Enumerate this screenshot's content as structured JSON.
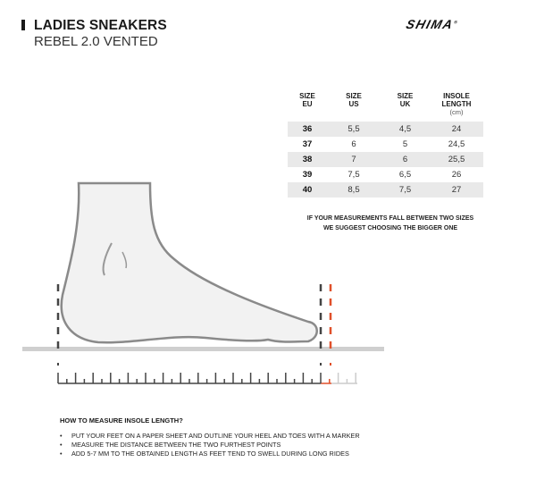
{
  "header": {
    "title": "LADIES SNEAKERS",
    "subtitle": "REBEL 2.0 VENTED",
    "logo": "SHIMA"
  },
  "size_table": {
    "headers": [
      {
        "line1": "SIZE",
        "line2": "EU"
      },
      {
        "line1": "SIZE",
        "line2": "US"
      },
      {
        "line1": "SIZE",
        "line2": "UK"
      },
      {
        "line1": "INSOLE LENGTH",
        "line2": "(cm)"
      }
    ],
    "rows": [
      [
        "36",
        "5,5",
        "4,5",
        "24"
      ],
      [
        "37",
        "6",
        "5",
        "24,5"
      ],
      [
        "38",
        "7",
        "6",
        "25,5"
      ],
      [
        "39",
        "7,5",
        "6,5",
        "26"
      ],
      [
        "40",
        "8,5",
        "7,5",
        "27"
      ]
    ]
  },
  "note": {
    "line1": "IF YOUR MEASUREMENTS FALL BETWEEN TWO SIZES",
    "line2": "WE SUGGEST CHOOSING THE BIGGER ONE"
  },
  "instructions": {
    "heading": "HOW TO MEASURE INSOLE LENGTH?",
    "items": [
      "PUT YOUR FEET ON A PAPER SHEET AND OUTLINE YOUR HEEL AND TOES WITH A MARKER",
      "MEASURE THE DISTANCE BETWEEN THE TWO FURTHEST POINTS",
      "ADD 5-7 MM TO THE OBTAINED LENGTH AS FEET TEND TO SWELL DURING LONG RIDES"
    ]
  },
  "colors": {
    "accent": "#e0502a",
    "outline": "#8a8a8a",
    "foot_fill": "#f2f2f2",
    "stripe": "#e9e9e9"
  }
}
